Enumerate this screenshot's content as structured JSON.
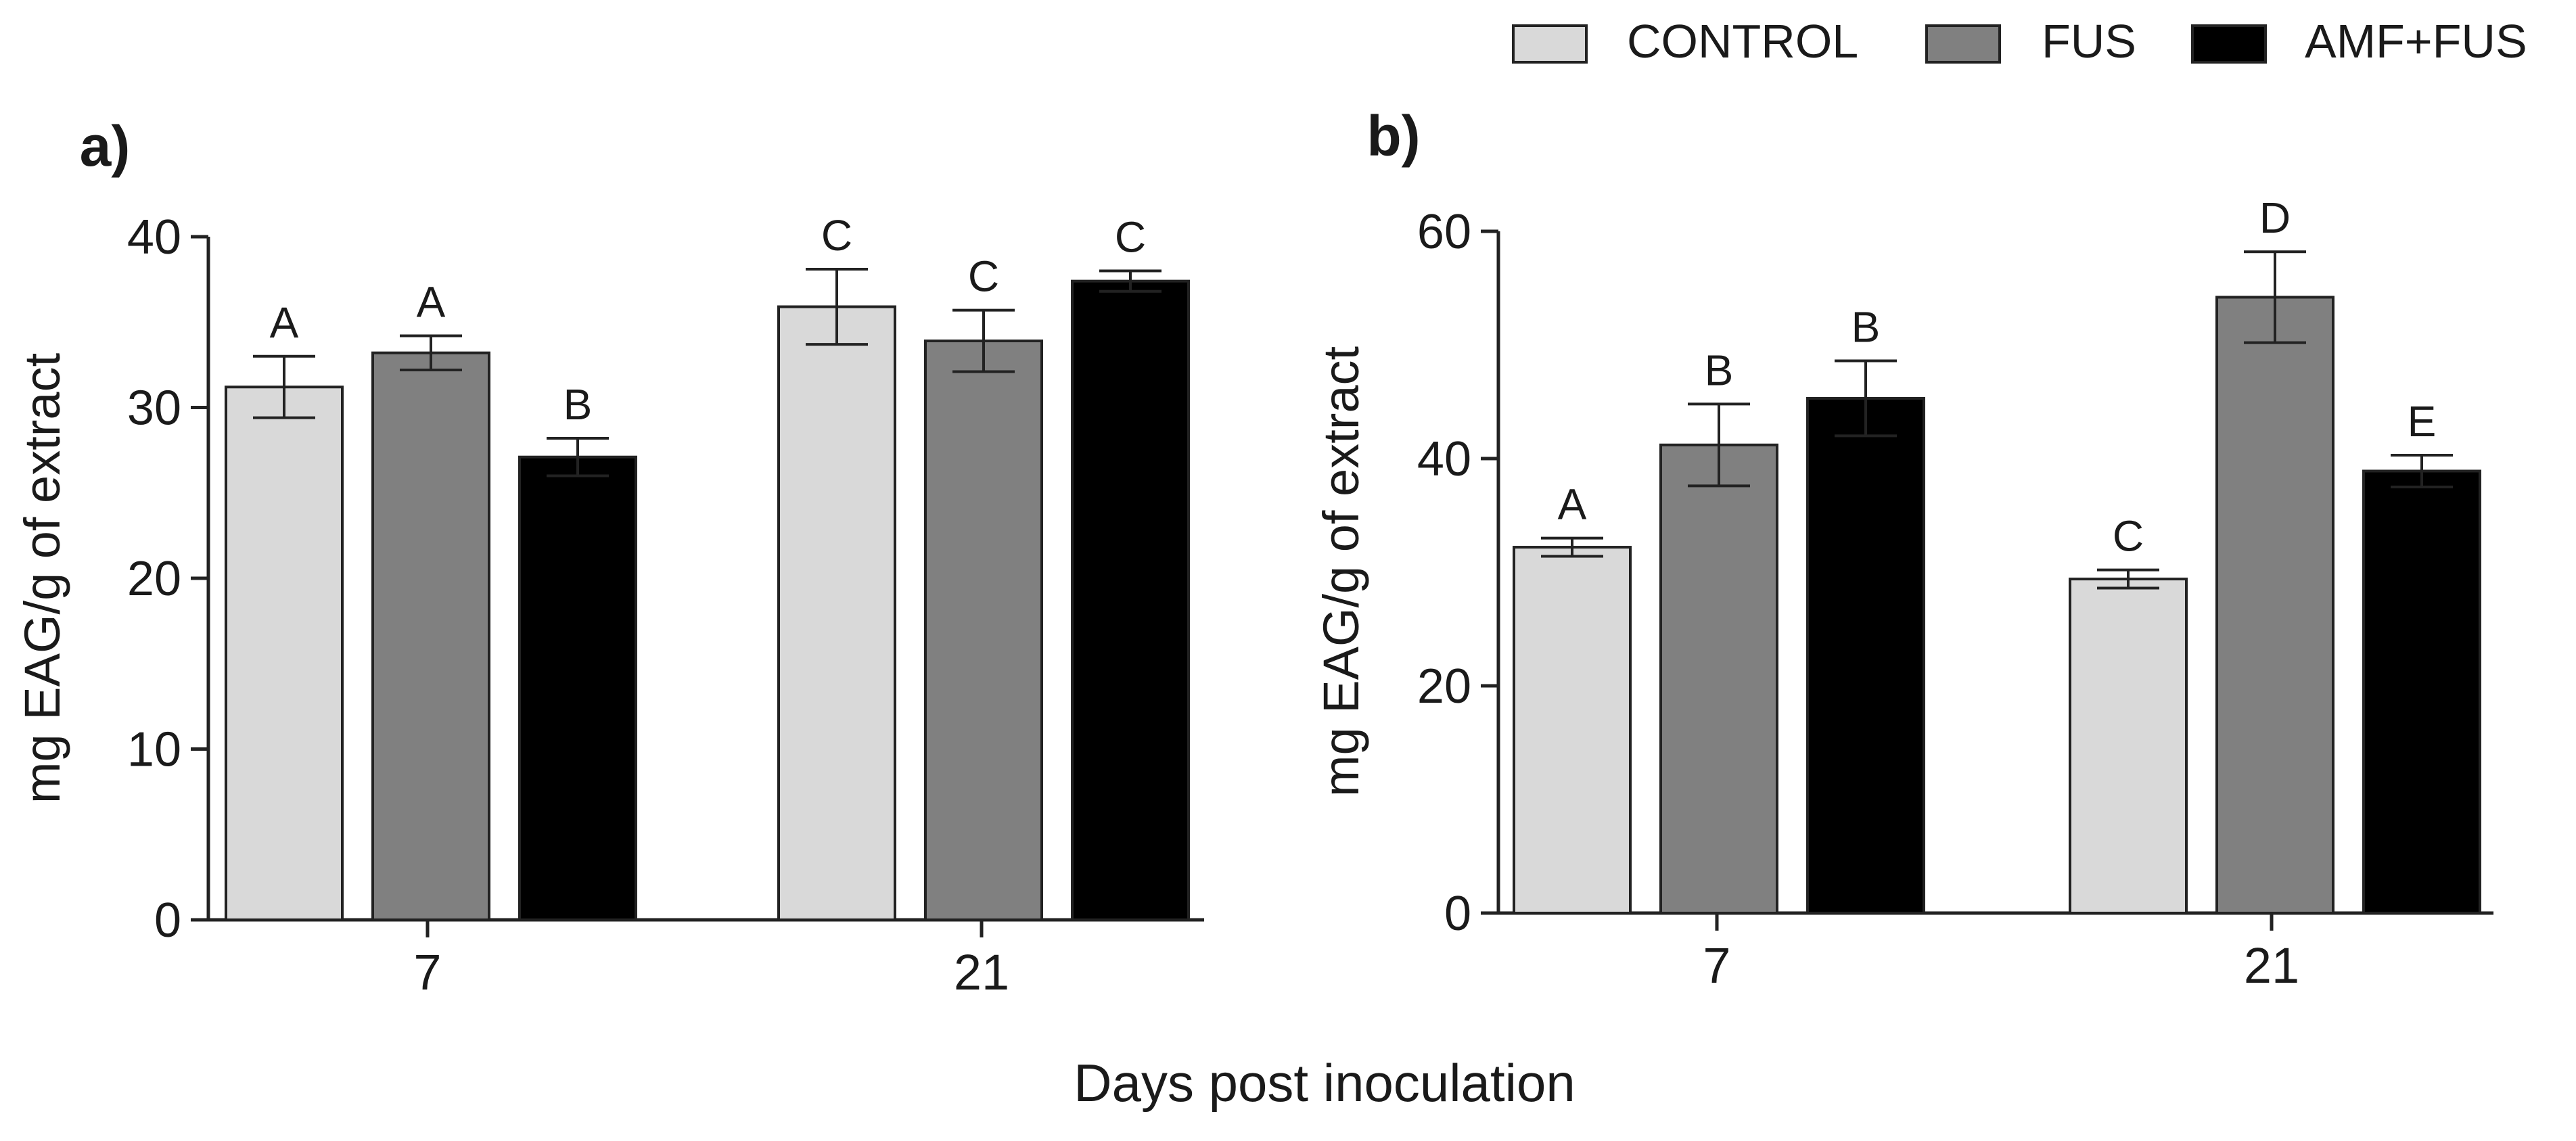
{
  "figure": {
    "xlabel": "Days post inoculation",
    "legend": {
      "placement": "top-right",
      "entries": [
        {
          "label": "CONTROL",
          "color": "#d9d9d9"
        },
        {
          "label": "FUS",
          "color": "#808080"
        },
        {
          "label": "AMF+FUS",
          "color": "#000000"
        }
      ]
    }
  },
  "chart_data": [
    {
      "type": "bar",
      "panel_label": "a)",
      "ylabel": "mg EAG/g of extract",
      "xlabel": "Days post inoculation",
      "ylim": [
        0,
        40
      ],
      "yticks": [
        0,
        10,
        20,
        30,
        40
      ],
      "categories": [
        "7",
        "21"
      ],
      "grid": false,
      "series": [
        {
          "name": "CONTROL",
          "color": "#d9d9d9",
          "values": [
            31.2,
            35.9
          ],
          "errors": [
            1.8,
            2.2
          ],
          "letters": [
            "A",
            "C"
          ]
        },
        {
          "name": "FUS",
          "color": "#808080",
          "values": [
            33.2,
            33.9
          ],
          "errors": [
            1.0,
            1.8
          ],
          "letters": [
            "A",
            "C"
          ]
        },
        {
          "name": "AMF+FUS",
          "color": "#000000",
          "values": [
            27.1,
            37.4
          ],
          "errors": [
            1.1,
            0.6
          ],
          "letters": [
            "B",
            "C"
          ]
        }
      ]
    },
    {
      "type": "bar",
      "panel_label": "b)",
      "ylabel": "mg EAG/g of extract",
      "xlabel": "Days post inoculation",
      "ylim": [
        0,
        60
      ],
      "yticks": [
        0,
        20,
        40,
        60
      ],
      "categories": [
        "7",
        "21"
      ],
      "grid": false,
      "series": [
        {
          "name": "CONTROL",
          "color": "#d9d9d9",
          "values": [
            32.2,
            29.4
          ],
          "errors": [
            0.8,
            0.8
          ],
          "letters": [
            "A",
            "C"
          ]
        },
        {
          "name": "FUS",
          "color": "#808080",
          "values": [
            41.2,
            54.2
          ],
          "errors": [
            3.6,
            4.0
          ],
          "letters": [
            "B",
            "D"
          ]
        },
        {
          "name": "AMF+FUS",
          "color": "#000000",
          "values": [
            45.3,
            38.9
          ],
          "errors": [
            3.3,
            1.4
          ],
          "letters": [
            "B",
            "E"
          ]
        }
      ]
    }
  ]
}
